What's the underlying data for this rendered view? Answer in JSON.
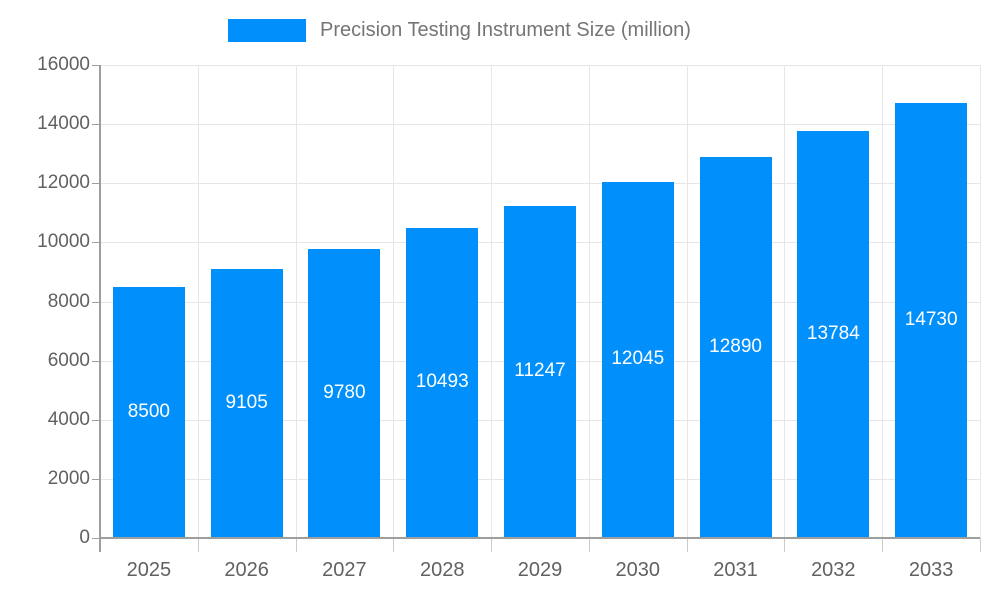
{
  "chart_data": {
    "type": "bar",
    "title": "Precision Testing Instrument Size (million)",
    "categories": [
      "2025",
      "2026",
      "2027",
      "2028",
      "2029",
      "2030",
      "2031",
      "2032",
      "2033"
    ],
    "values": [
      8500,
      9105,
      9780,
      10493,
      11247,
      12045,
      12890,
      13784,
      14730
    ],
    "xlabel": "",
    "ylabel": "",
    "ylim": [
      0,
      16000
    ],
    "ytick_step": 2000,
    "ytick_labels": [
      "0",
      "2000",
      "4000",
      "6000",
      "8000",
      "10000",
      "12000",
      "14000",
      "16000"
    ],
    "grid": "on",
    "legend_position": "top",
    "colors": {
      "bar": "#0190fb",
      "bar_label": "#ffffff",
      "grid": "#e6e6e6",
      "axis": "#9e9e9e",
      "tick": "#cccccc",
      "tick_label": "#616161",
      "legend_text": "#757575"
    }
  }
}
